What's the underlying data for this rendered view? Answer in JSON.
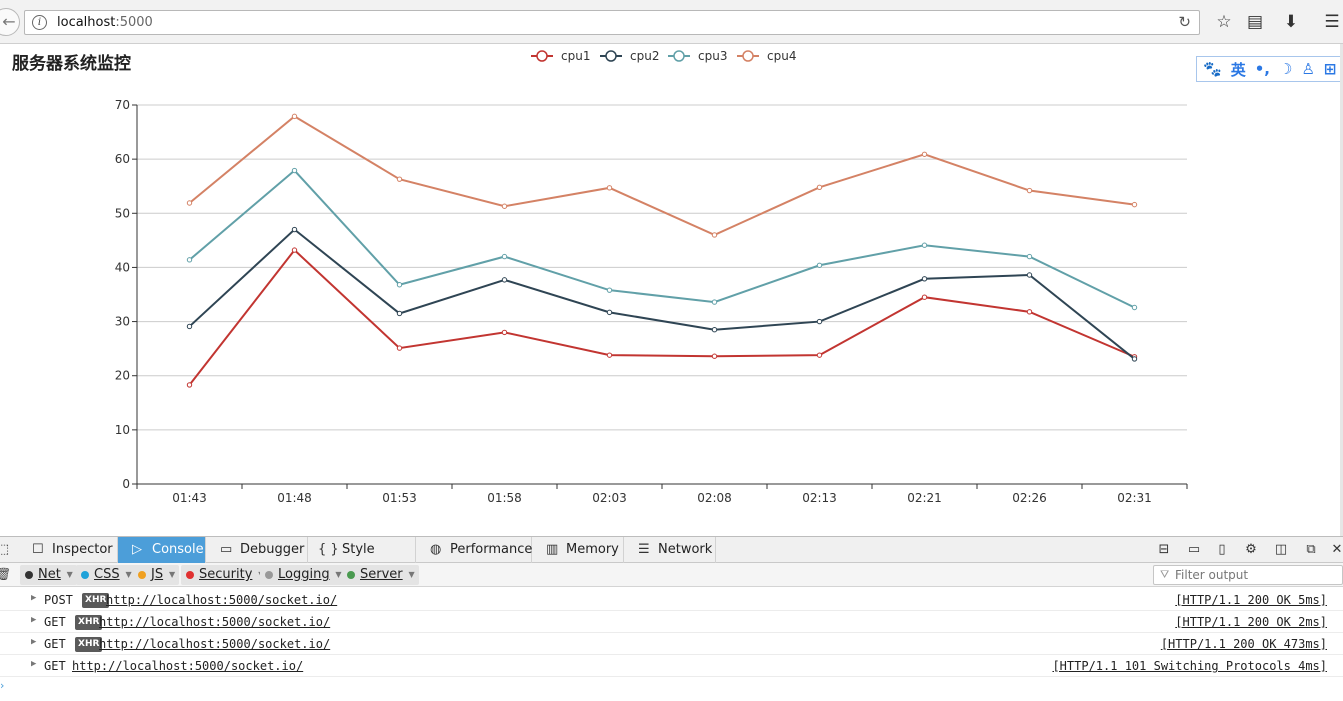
{
  "browser": {
    "url_host": "localhost",
    "url_port": ":5000"
  },
  "page": {
    "title": "服务器系统监控",
    "ime": [
      "🐾",
      "英",
      "•,",
      "☽",
      "♙",
      "⊞"
    ]
  },
  "chart_data": {
    "type": "line",
    "title": "",
    "xlabel": "",
    "ylabel": "",
    "categories": [
      "01:43",
      "01:48",
      "01:53",
      "01:58",
      "02:03",
      "02:08",
      "02:13",
      "02:21",
      "02:26",
      "02:31"
    ],
    "ylim": [
      0,
      70
    ],
    "yticks": [
      0,
      10,
      20,
      30,
      40,
      50,
      60,
      70
    ],
    "grid": true,
    "legend_position": "top-center",
    "series": [
      {
        "name": "cpu1",
        "color": "#c23531",
        "values": [
          18.3,
          43.2,
          25.1,
          28.0,
          23.8,
          23.6,
          23.8,
          34.5,
          31.8,
          23.5
        ]
      },
      {
        "name": "cpu2",
        "color": "#2f4554",
        "values": [
          29.1,
          47.0,
          31.5,
          37.7,
          31.7,
          28.5,
          30.0,
          37.9,
          38.6,
          23.1
        ]
      },
      {
        "name": "cpu3",
        "color": "#61a0a8",
        "values": [
          41.4,
          57.9,
          36.8,
          42.0,
          35.8,
          33.6,
          40.4,
          44.1,
          42.0,
          32.6
        ]
      },
      {
        "name": "cpu4",
        "color": "#d48265",
        "values": [
          51.9,
          67.9,
          56.3,
          51.3,
          54.7,
          46.0,
          54.8,
          60.9,
          54.2,
          51.6
        ]
      }
    ]
  },
  "devtools": {
    "tabs": [
      {
        "label": "Inspector",
        "icon": "☐"
      },
      {
        "label": "Console",
        "icon": "▷"
      },
      {
        "label": "Debugger",
        "icon": "▭"
      },
      {
        "label": "Style Editor",
        "icon": "{ }"
      },
      {
        "label": "Performance",
        "icon": "◍"
      },
      {
        "label": "Memory",
        "icon": "▥"
      },
      {
        "label": "Network",
        "icon": "☰"
      }
    ],
    "filters": [
      {
        "label": "Net",
        "color": "#333333"
      },
      {
        "label": "CSS",
        "color": "#1fa2d9"
      },
      {
        "label": "JS",
        "color": "#f0a020"
      },
      {
        "label": "Security",
        "color": "#e03030"
      },
      {
        "label": "Logging",
        "color": "#999999"
      },
      {
        "label": "Server",
        "color": "#4a9a50"
      }
    ],
    "filter_placeholder": "Filter output",
    "logs": [
      {
        "method": "POST",
        "xhr": "XHR",
        "url": "http://localhost:5000/socket.io/",
        "status": "[HTTP/1.1 200 OK 5ms]"
      },
      {
        "method": "GET",
        "xhr": "XHR",
        "url": "http://localhost:5000/socket.io/",
        "status": "[HTTP/1.1 200 OK 2ms]"
      },
      {
        "method": "GET",
        "xhr": "XHR",
        "url": "http://localhost:5000/socket.io/",
        "status": "[HTTP/1.1 200 OK 473ms]"
      },
      {
        "method": "GET",
        "xhr": "",
        "url": "http://localhost:5000/socket.io/",
        "status": "[HTTP/1.1 101 Switching Protocols 4ms]"
      }
    ]
  }
}
